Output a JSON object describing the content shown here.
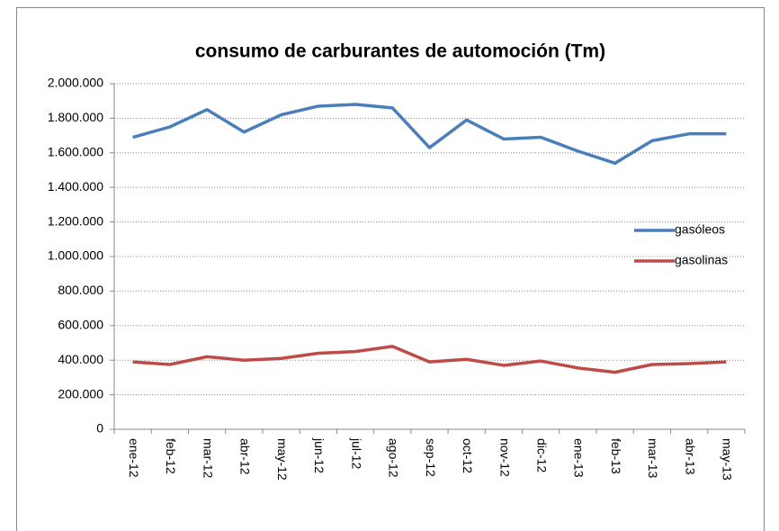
{
  "chart_data": {
    "type": "line",
    "title": "consumo de carburantes de automoción (Tm)",
    "categories": [
      "ene-12",
      "feb-12",
      "mar-12",
      "abr-12",
      "may-12",
      "jun-12",
      "jul-12",
      "ago-12",
      "sep-12",
      "oct-12",
      "nov-12",
      "dic-12",
      "ene-13",
      "feb-13",
      "mar-13",
      "abr-13",
      "may-13"
    ],
    "series": [
      {
        "name": "gasóleos",
        "color": "#4a7ebb",
        "values": [
          1690000,
          1750000,
          1850000,
          1720000,
          1820000,
          1870000,
          1880000,
          1860000,
          1630000,
          1790000,
          1680000,
          1690000,
          1610000,
          1540000,
          1670000,
          1710000,
          1710000
        ]
      },
      {
        "name": "gasolinas",
        "color": "#be4b48",
        "values": [
          390000,
          375000,
          420000,
          400000,
          410000,
          440000,
          450000,
          480000,
          390000,
          405000,
          370000,
          395000,
          355000,
          330000,
          375000,
          380000,
          390000
        ]
      }
    ],
    "ylim": [
      0,
      2000000
    ],
    "yticks": [
      0,
      {
        "value": 200000,
        "label": "200.000"
      },
      {
        "value": 400000,
        "label": "400.000"
      },
      {
        "value": 600000,
        "label": "600.000"
      },
      {
        "value": 800000,
        "label": "800.000"
      },
      {
        "value": 1000000,
        "label": "1.000.000"
      },
      {
        "value": 1200000,
        "label": "1.200.000"
      },
      {
        "value": 1400000,
        "label": "1.400.000"
      },
      {
        "value": 1600000,
        "label": "1.600.000"
      },
      {
        "value": 1800000,
        "label": "1.800.000"
      },
      {
        "value": 2000000,
        "label": "2.000.000"
      }
    ],
    "grid": true,
    "legend": "right"
  }
}
